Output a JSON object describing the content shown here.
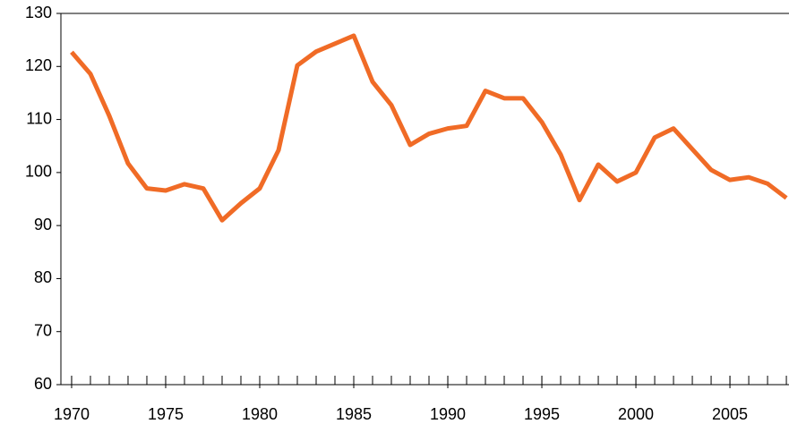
{
  "chart_data": {
    "type": "line",
    "x": [
      1970,
      1971,
      1972,
      1973,
      1974,
      1975,
      1976,
      1977,
      1978,
      1979,
      1980,
      1981,
      1982,
      1983,
      1984,
      1985,
      1986,
      1987,
      1988,
      1989,
      1990,
      1991,
      1992,
      1993,
      1994,
      1995,
      1996,
      1997,
      1998,
      1999,
      2000,
      2001,
      2002,
      2003,
      2004,
      2005,
      2006,
      2007,
      2008
    ],
    "series": [
      {
        "color": "#f06b26",
        "values": [
          122.7,
          118.6,
          110.7,
          101.7,
          97,
          96.6,
          97.8,
          97,
          91,
          94.2,
          97,
          104.2,
          120.2,
          122.8,
          124.3,
          125.8,
          117.1,
          112.7,
          105.2,
          107.3,
          108.3,
          108.8,
          115.4,
          114,
          114,
          109.5,
          103.4,
          94.8,
          101.5,
          98.3,
          100,
          106.6,
          108.3,
          104.4,
          100.5,
          98.6,
          99.1,
          97.9,
          95.2
        ]
      }
    ],
    "xlim": [
      1969.43,
      2008.14
    ],
    "xticks": [
      1970,
      1975,
      1980,
      1985,
      1990,
      1995,
      2000,
      2005
    ],
    "ylim": [
      60,
      130
    ],
    "yticks": [
      60,
      70,
      80,
      90,
      100,
      110,
      120,
      130
    ],
    "grid": false
  }
}
